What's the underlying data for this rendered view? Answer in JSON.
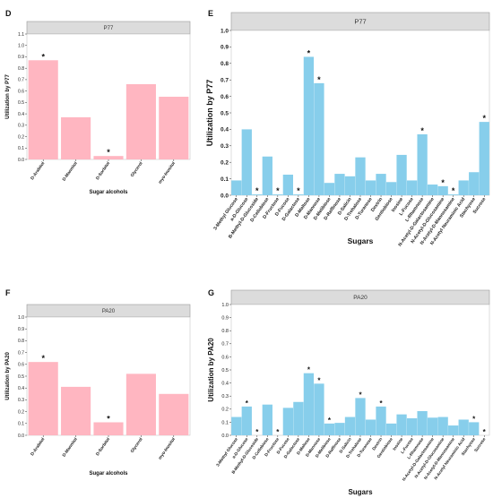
{
  "colors": {
    "pink": "#ffb6c1",
    "blue": "#87ceeb",
    "strip": "#dcdcdc",
    "strip_border": "#9a9a9a"
  },
  "panels": {
    "D": {
      "letter": "D"
    },
    "E": {
      "letter": "E"
    },
    "F": {
      "letter": "F"
    },
    "G": {
      "letter": "G"
    }
  },
  "chart_data": [
    {
      "id": "D",
      "type": "bar",
      "strip_title": "P77",
      "xlabel": "Sugar alcohols",
      "ylabel": "Utilization by P77",
      "ylim": [
        0,
        1.1
      ],
      "yticks": [
        "0.0",
        "0.1",
        "0.2",
        "0.3",
        "0.4",
        "0.5",
        "0.6",
        "0.7",
        "0.8",
        "0.9",
        "1.0",
        "1.1"
      ],
      "categories": [
        "D-Arabitol",
        "D-Mannitol",
        "D-Sorbitol",
        "Glycerol",
        "myo-Inositol"
      ],
      "values": [
        0.87,
        0.37,
        0.03,
        0.66,
        0.55
      ],
      "significant": [
        true,
        false,
        true,
        false,
        false
      ],
      "color": "pink"
    },
    {
      "id": "E",
      "type": "bar",
      "strip_title": "P77",
      "xlabel": "Sugars",
      "ylabel": "Utilization by P77",
      "ylim": [
        0,
        1.0
      ],
      "yticks": [
        "0.0",
        "0.1",
        "0.2",
        "0.3",
        "0.4",
        "0.5",
        "0.6",
        "0.7",
        "0.8",
        "0.9",
        "1.0"
      ],
      "categories": [
        "3-Methyl Glucose",
        "a-D-Glucose",
        "B-Methyl-D-Glucoside",
        "D-Cellobiose",
        "D-Fructose",
        "D-Fucose",
        "D-Galactose",
        "D-Maltose",
        "D-Mannose",
        "D-Melibiose",
        "D-Raffinose",
        "D-Salicin",
        "D-Trehalose",
        "D-Turanose",
        "Dextrin",
        "Gentiobiose",
        "Inosine",
        "L-Fucose",
        "L-Rhamnose",
        "N-Acetyl-D-Galactosamine",
        "N-Acetyl-D-Glucosamine",
        "N-Acetyl-D-Mannosamine",
        "N-Acetyl Neuraminic Acid",
        "Stachyose",
        "Sucrose"
      ],
      "values": [
        0.09,
        0.4,
        0.005,
        0.235,
        0.005,
        0.125,
        0.005,
        0.84,
        0.68,
        0.075,
        0.13,
        0.115,
        0.23,
        0.09,
        0.13,
        0.08,
        0.245,
        0.09,
        0.37,
        0.065,
        0.055,
        0.005,
        0.09,
        0.14,
        0.445
      ],
      "significant": [
        false,
        false,
        true,
        false,
        true,
        false,
        true,
        true,
        true,
        false,
        false,
        false,
        false,
        false,
        false,
        false,
        false,
        false,
        true,
        false,
        true,
        true,
        false,
        false,
        true
      ],
      "color": "blue"
    },
    {
      "id": "F",
      "type": "bar",
      "strip_title": "PA20",
      "xlabel": "Sugar alcohols",
      "ylabel": "Utilization by PA20",
      "ylim": [
        0,
        1.0
      ],
      "yticks": [
        "0.0",
        "0.1",
        "0.2",
        "0.3",
        "0.4",
        "0.5",
        "0.6",
        "0.7",
        "0.8",
        "0.9",
        "1.0"
      ],
      "categories": [
        "D-Arabitol",
        "D-Mannitol",
        "D-Sorbitol",
        "Glycerol",
        "myo-Inositol"
      ],
      "values": [
        0.62,
        0.41,
        0.11,
        0.52,
        0.35
      ],
      "significant": [
        true,
        false,
        true,
        false,
        false
      ],
      "color": "pink"
    },
    {
      "id": "G",
      "type": "bar",
      "strip_title": "PA20",
      "xlabel": "Sugars",
      "ylabel": "Utilization by PA20",
      "ylim": [
        0,
        1.0
      ],
      "yticks": [
        "0.0",
        "0.1",
        "0.2",
        "0.3",
        "0.4",
        "0.5",
        "0.6",
        "0.7",
        "0.8",
        "0.9",
        "1.0"
      ],
      "categories": [
        "3-Methyl Glucose",
        "a-D-Glucose",
        "B-Methyl-D-Glucoside",
        "D-Cellobiose",
        "D-Fructose",
        "D-Fucose",
        "D-Galactose",
        "D-Maltose",
        "D-Mannose",
        "D-Melibiose",
        "D-Raffinose",
        "D-Salicin",
        "D-Trehalose",
        "D-Turanose",
        "Dextrin",
        "Gentiobiose",
        "Inosine",
        "L-Fucose",
        "L-Rhamnose",
        "N-Acetyl-D-Galactosamine",
        "N-Acetyl-D-Glucosamine",
        "N-Acetyl-D-Mannosamine",
        "N-Acetyl Neuraminic Acid",
        "Stachyose",
        "Sucrose"
      ],
      "values": [
        0.14,
        0.22,
        0.0,
        0.235,
        0.0,
        0.21,
        0.255,
        0.475,
        0.395,
        0.09,
        0.095,
        0.14,
        0.285,
        0.12,
        0.22,
        0.09,
        0.16,
        0.13,
        0.185,
        0.135,
        0.14,
        0.075,
        0.12,
        0.1,
        0.0
      ],
      "significant": [
        false,
        true,
        true,
        false,
        true,
        false,
        false,
        true,
        true,
        true,
        false,
        false,
        true,
        false,
        true,
        false,
        false,
        false,
        false,
        false,
        false,
        false,
        false,
        true,
        true
      ],
      "color": "blue"
    }
  ]
}
